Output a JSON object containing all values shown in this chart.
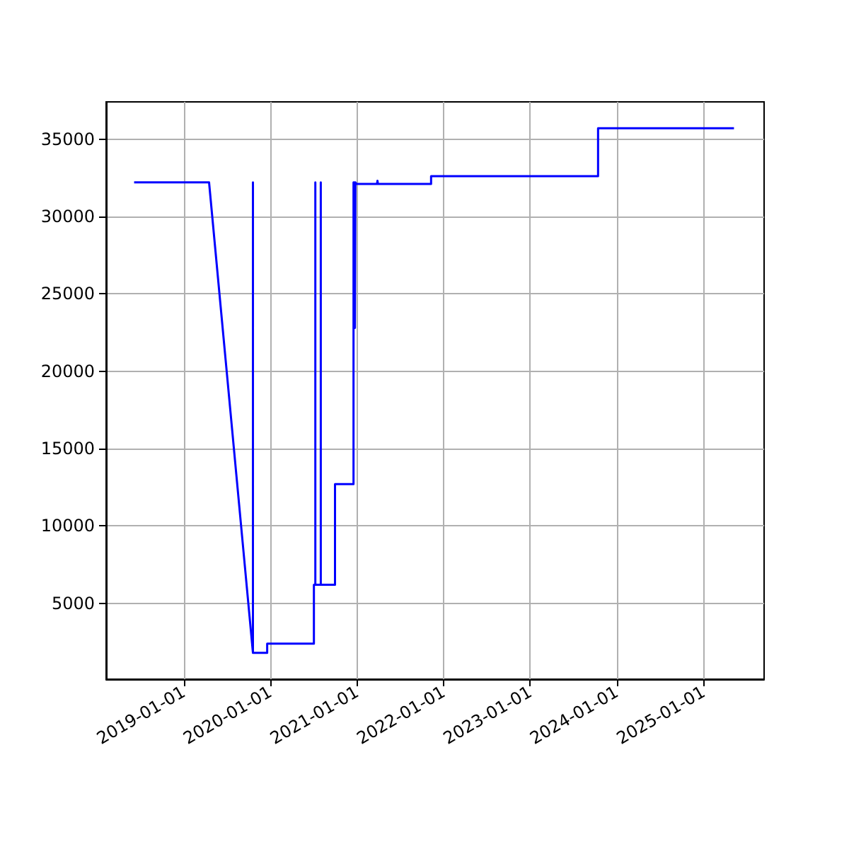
{
  "chart_data": {
    "type": "line",
    "x": [
      "2018-06-06",
      "2019-04-18",
      "2019-10-20",
      "2019-10-20",
      "2019-10-20",
      "2019-12-19",
      "2019-12-19",
      "2020-07-03",
      "2020-07-03",
      "2020-07-09",
      "2020-07-09",
      "2020-07-09",
      "2020-08-01",
      "2020-08-01",
      "2020-08-01",
      "2020-09-30",
      "2020-09-30",
      "2020-12-17",
      "2020-12-17",
      "2020-12-19",
      "2020-12-21",
      "2020-12-23",
      "2020-12-25",
      "2020-12-29",
      "2021-03-26",
      "2021-03-28",
      "2021-03-30",
      "2021-11-09",
      "2021-11-09",
      "2023-10-14",
      "2023-10-14",
      "2025-05-09"
    ],
    "series": [
      {
        "color": "#0000ff",
        "values": [
          32200,
          32200,
          1800,
          32200,
          1800,
          1800,
          2400,
          2400,
          6200,
          6200,
          32200,
          6200,
          6200,
          32200,
          6200,
          6200,
          12700,
          12700,
          32200,
          22800,
          32200,
          22800,
          32200,
          32100,
          32100,
          32300,
          32100,
          32100,
          32600,
          32600,
          35700,
          35700
        ]
      }
    ],
    "xlim": [
      "2018-02-08",
      "2025-09-13"
    ],
    "xticks": [
      "2019-01-01",
      "2020-01-01",
      "2021-01-01",
      "2022-01-01",
      "2023-01-01",
      "2024-01-01",
      "2025-01-01"
    ],
    "ylim": [
      100,
      37400
    ],
    "yticks": [
      5000,
      10000,
      15000,
      20000,
      25000,
      30000,
      35000
    ],
    "grid": true,
    "marker": "none",
    "line_style": "solid"
  }
}
